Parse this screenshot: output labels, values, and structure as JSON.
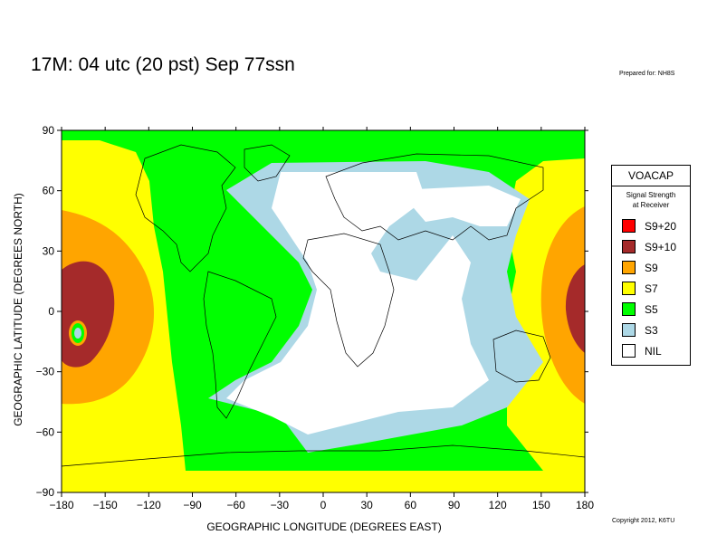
{
  "header": {
    "title": "17M:  04 utc (20 pst) Sep 77ssn",
    "prepared": "Prepared for: NH8S"
  },
  "footer": {
    "copyright": "Copyright 2012, K6TU"
  },
  "axes": {
    "xlabel": "GEOGRAPHIC LONGITUDE (DEGREES EAST)",
    "ylabel": "GEOGRAPHIC LATITUDE (DEGREES NORTH)",
    "xticks": [
      "−180",
      "−150",
      "−120",
      "−90",
      "−60",
      "−30",
      "0",
      "30",
      "60",
      "90",
      "120",
      "150",
      "180"
    ],
    "yticks": [
      "90",
      "60",
      "30",
      "0",
      "−30",
      "−60",
      "−90"
    ],
    "xlim": [
      -180,
      180
    ],
    "ylim": [
      -90,
      90
    ]
  },
  "legend": {
    "title": "VOACAP",
    "subtitle_line1": "Signal Strength",
    "subtitle_line2": "at Receiver",
    "items": [
      {
        "label": "S9+20",
        "color": "#ff0000"
      },
      {
        "label": "S9+10",
        "color": "#a52a2a"
      },
      {
        "label": "S9",
        "color": "#ffa500"
      },
      {
        "label": "S7",
        "color": "#ffff00"
      },
      {
        "label": "S5",
        "color": "#00ff00"
      },
      {
        "label": "S3",
        "color": "#add8e6"
      },
      {
        "label": "NIL",
        "color": "#ffffff"
      }
    ]
  }
}
